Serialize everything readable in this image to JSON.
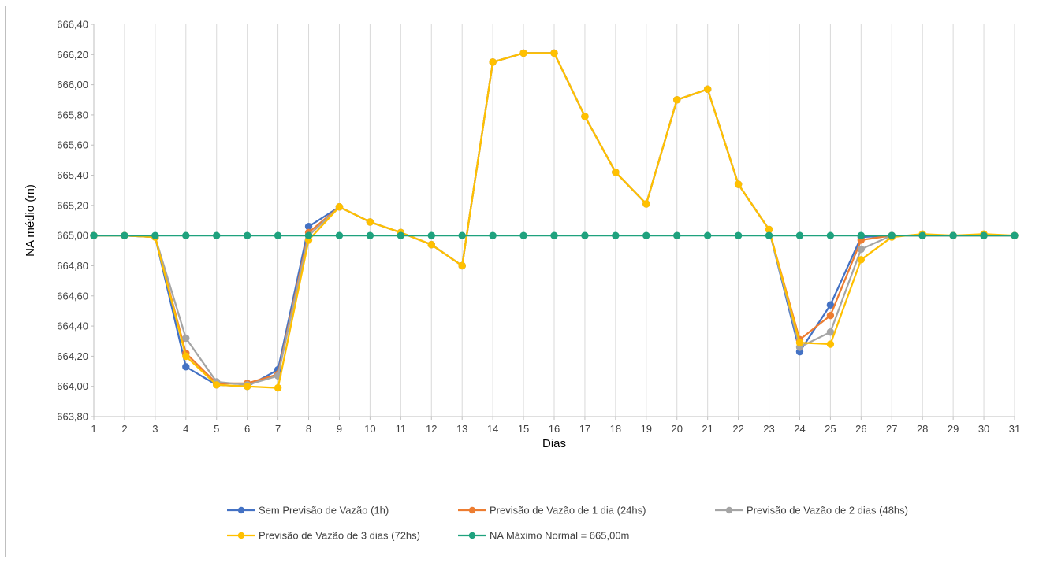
{
  "chart_data": {
    "type": "line",
    "xlabel": "Dias",
    "ylabel": "NA médio (m)",
    "ylim": [
      663.8,
      666.4
    ],
    "yticks": [
      663.8,
      664.0,
      664.2,
      664.4,
      664.6,
      664.8,
      665.0,
      665.2,
      665.4,
      665.6,
      665.8,
      666.0,
      666.2,
      666.4
    ],
    "ytick_labels": [
      "663,80",
      "664,00",
      "664,20",
      "664,40",
      "664,60",
      "664,80",
      "665,00",
      "665,20",
      "665,40",
      "665,60",
      "665,80",
      "666,00",
      "666,20",
      "666,40"
    ],
    "x": [
      1,
      2,
      3,
      4,
      5,
      6,
      7,
      8,
      9,
      10,
      11,
      12,
      13,
      14,
      15,
      16,
      17,
      18,
      19,
      20,
      21,
      22,
      23,
      24,
      25,
      26,
      27,
      28,
      29,
      30,
      31
    ],
    "xtick_labels": [
      "1",
      "2",
      "3",
      "4",
      "5",
      "6",
      "7",
      "8",
      "9",
      "10",
      "11",
      "12",
      "13",
      "14",
      "15",
      "16",
      "17",
      "18",
      "19",
      "20",
      "21",
      "22",
      "23",
      "24",
      "25",
      "26",
      "27",
      "28",
      "29",
      "30",
      "31"
    ],
    "grid": "vertical",
    "legend_position": "bottom",
    "series": [
      {
        "name": "Sem Previsão de Vazão (1h)",
        "color": "#4472c4",
        "values": [
          665.0,
          665.0,
          664.99,
          664.13,
          664.01,
          664.0,
          664.11,
          665.06,
          665.19,
          665.09,
          665.02,
          664.94,
          664.8,
          666.15,
          666.21,
          666.21,
          665.79,
          665.42,
          665.21,
          665.9,
          665.97,
          665.34,
          665.04,
          664.23,
          664.54,
          664.99,
          665.0,
          665.0,
          665.0,
          665.0,
          665.0
        ]
      },
      {
        "name": "Previsão de Vazão de 1 dia (24hs)",
        "color": "#ed7d31",
        "values": [
          665.0,
          665.0,
          664.99,
          664.22,
          664.02,
          664.02,
          664.08,
          665.02,
          665.19,
          665.09,
          665.02,
          664.94,
          664.8,
          666.15,
          666.21,
          666.21,
          665.79,
          665.42,
          665.21,
          665.9,
          665.97,
          665.34,
          665.04,
          664.31,
          664.47,
          664.97,
          665.0,
          665.0,
          665.0,
          665.0,
          665.0
        ]
      },
      {
        "name": "Previsão de Vazão de 2 dias (48hs)",
        "color": "#a5a5a5",
        "values": [
          665.0,
          665.0,
          664.99,
          664.32,
          664.03,
          664.01,
          664.07,
          665.0,
          665.19,
          665.09,
          665.02,
          664.94,
          664.8,
          666.15,
          666.21,
          666.21,
          665.79,
          665.42,
          665.21,
          665.9,
          665.97,
          665.34,
          665.04,
          664.26,
          664.36,
          664.91,
          665.0,
          665.0,
          665.0,
          665.0,
          665.0
        ]
      },
      {
        "name": "Previsão de Vazão de 3 dias (72hs)",
        "color": "#ffc000",
        "values": [
          665.0,
          665.0,
          664.99,
          664.2,
          664.01,
          664.0,
          663.99,
          664.97,
          665.19,
          665.09,
          665.02,
          664.94,
          664.8,
          666.15,
          666.21,
          666.21,
          665.79,
          665.42,
          665.21,
          665.9,
          665.97,
          665.34,
          665.04,
          664.29,
          664.28,
          664.84,
          664.99,
          665.01,
          665.0,
          665.01,
          665.0
        ]
      },
      {
        "name": "NA Máximo Normal = 665,00m",
        "color": "#1fa27e",
        "values": [
          665.0,
          665.0,
          665.0,
          665.0,
          665.0,
          665.0,
          665.0,
          665.0,
          665.0,
          665.0,
          665.0,
          665.0,
          665.0,
          665.0,
          665.0,
          665.0,
          665.0,
          665.0,
          665.0,
          665.0,
          665.0,
          665.0,
          665.0,
          665.0,
          665.0,
          665.0,
          665.0,
          665.0,
          665.0,
          665.0,
          665.0
        ]
      }
    ]
  }
}
